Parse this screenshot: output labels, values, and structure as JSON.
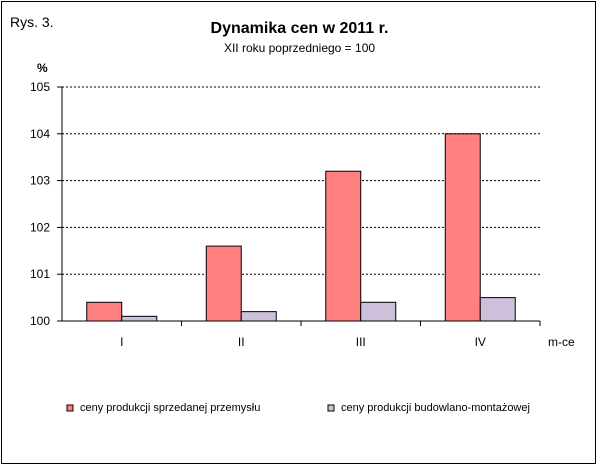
{
  "figure_label": "Rys. 3.",
  "colors": {
    "series1": "#ff8080",
    "series2": "#ccc0da",
    "stroke": "#000000",
    "grid": "#000000"
  },
  "chart_data": {
    "type": "bar",
    "title": "Dynamika cen w 2011 r.",
    "subtitle": "XII roku poprzedniego = 100",
    "ylabel": "%",
    "xlabel": "m-ce",
    "categories": [
      "I",
      "II",
      "III",
      "IV"
    ],
    "series": [
      {
        "name": "ceny produkcji sprzedanej przemysłu",
        "values": [
          100.4,
          101.6,
          103.2,
          104.0
        ]
      },
      {
        "name": "ceny produkcji budowlano-montażowej",
        "values": [
          100.1,
          100.2,
          100.4,
          100.5
        ]
      }
    ],
    "ylim": [
      100,
      105
    ],
    "yticks": [
      100,
      101,
      102,
      103,
      104,
      105
    ],
    "grid": true,
    "legend_position": "bottom"
  }
}
